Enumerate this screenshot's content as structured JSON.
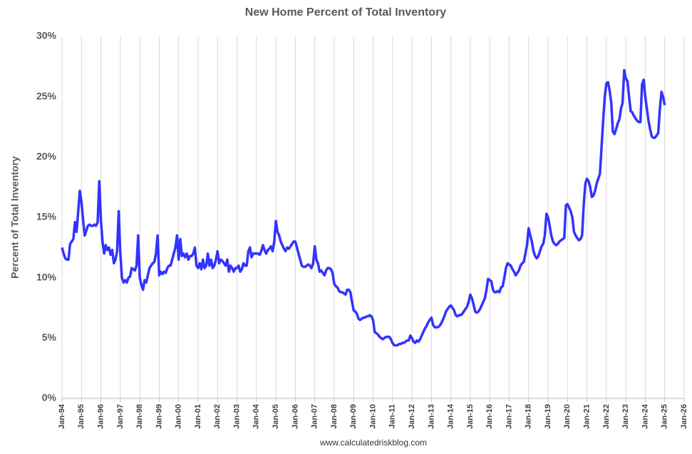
{
  "chart_data": {
    "type": "line",
    "title": "New Home Percent of Total Inventory",
    "y_label": "Percent of Total Inventory",
    "source": "www.calculatedriskblog.com",
    "x": [
      "1994-01",
      "1994-02",
      "1994-03",
      "1994-04",
      "1994-05",
      "1994-06",
      "1994-07",
      "1994-08",
      "1994-09",
      "1994-10",
      "1994-11",
      "1994-12",
      "1995-01",
      "1995-02",
      "1995-03",
      "1995-04",
      "1995-05",
      "1995-06",
      "1995-07",
      "1995-08",
      "1995-09",
      "1995-10",
      "1995-11",
      "1995-12",
      "1996-01",
      "1996-02",
      "1996-03",
      "1996-04",
      "1996-05",
      "1996-06",
      "1996-07",
      "1996-08",
      "1996-09",
      "1996-10",
      "1996-11",
      "1996-12",
      "1997-01",
      "1997-02",
      "1997-03",
      "1997-04",
      "1997-05",
      "1997-06",
      "1997-07",
      "1997-08",
      "1997-09",
      "1997-10",
      "1997-11",
      "1997-12",
      "1998-01",
      "1998-02",
      "1998-03",
      "1998-04",
      "1998-05",
      "1998-06",
      "1998-07",
      "1998-08",
      "1998-09",
      "1998-10",
      "1998-11",
      "1998-12",
      "1999-01",
      "1999-02",
      "1999-03",
      "1999-04",
      "1999-05",
      "1999-06",
      "1999-07",
      "1999-08",
      "1999-09",
      "1999-10",
      "1999-11",
      "1999-12",
      "2000-01",
      "2000-02",
      "2000-03",
      "2000-04",
      "2000-05",
      "2000-06",
      "2000-07",
      "2000-08",
      "2000-09",
      "2000-10",
      "2000-11",
      "2000-12",
      "2001-01",
      "2001-02",
      "2001-03",
      "2001-04",
      "2001-05",
      "2001-06",
      "2001-07",
      "2001-08",
      "2001-09",
      "2001-10",
      "2001-11",
      "2001-12",
      "2002-01",
      "2002-02",
      "2002-03",
      "2002-04",
      "2002-05",
      "2002-06",
      "2002-07",
      "2002-08",
      "2002-09",
      "2002-10",
      "2002-11",
      "2002-12",
      "2003-01",
      "2003-02",
      "2003-03",
      "2003-04",
      "2003-05",
      "2003-06",
      "2003-07",
      "2003-08",
      "2003-09",
      "2003-10",
      "2003-11",
      "2003-12",
      "2004-01",
      "2004-02",
      "2004-03",
      "2004-04",
      "2004-05",
      "2004-06",
      "2004-07",
      "2004-08",
      "2004-09",
      "2004-10",
      "2004-11",
      "2004-12",
      "2005-01",
      "2005-02",
      "2005-03",
      "2005-04",
      "2005-05",
      "2005-06",
      "2005-07",
      "2005-08",
      "2005-09",
      "2005-10",
      "2005-11",
      "2005-12",
      "2006-01",
      "2006-02",
      "2006-03",
      "2006-04",
      "2006-05",
      "2006-06",
      "2006-07",
      "2006-08",
      "2006-09",
      "2006-10",
      "2006-11",
      "2006-12",
      "2007-01",
      "2007-02",
      "2007-03",
      "2007-04",
      "2007-05",
      "2007-06",
      "2007-07",
      "2007-08",
      "2007-09",
      "2007-10",
      "2007-11",
      "2007-12",
      "2008-01",
      "2008-02",
      "2008-03",
      "2008-04",
      "2008-05",
      "2008-06",
      "2008-07",
      "2008-08",
      "2008-09",
      "2008-10",
      "2008-11",
      "2008-12",
      "2009-01",
      "2009-02",
      "2009-03",
      "2009-04",
      "2009-05",
      "2009-06",
      "2009-07",
      "2009-08",
      "2009-09",
      "2009-10",
      "2009-11",
      "2009-12",
      "2010-01",
      "2010-02",
      "2010-03",
      "2010-04",
      "2010-05",
      "2010-06",
      "2010-07",
      "2010-08",
      "2010-09",
      "2010-10",
      "2010-11",
      "2010-12",
      "2011-01",
      "2011-02",
      "2011-03",
      "2011-04",
      "2011-05",
      "2011-06",
      "2011-07",
      "2011-08",
      "2011-09",
      "2011-10",
      "2011-11",
      "2011-12",
      "2012-01",
      "2012-02",
      "2012-03",
      "2012-04",
      "2012-05",
      "2012-06",
      "2012-07",
      "2012-08",
      "2012-09",
      "2012-10",
      "2012-11",
      "2012-12",
      "2013-01",
      "2013-02",
      "2013-03",
      "2013-04",
      "2013-05",
      "2013-06",
      "2013-07",
      "2013-08",
      "2013-09",
      "2013-10",
      "2013-11",
      "2013-12",
      "2014-01",
      "2014-02",
      "2014-03",
      "2014-04",
      "2014-05",
      "2014-06",
      "2014-07",
      "2014-08",
      "2014-09",
      "2014-10",
      "2014-11",
      "2014-12",
      "2015-01",
      "2015-02",
      "2015-03",
      "2015-04",
      "2015-05",
      "2015-06",
      "2015-07",
      "2015-08",
      "2015-09",
      "2015-10",
      "2015-11",
      "2015-12",
      "2016-01",
      "2016-02",
      "2016-03",
      "2016-04",
      "2016-05",
      "2016-06",
      "2016-07",
      "2016-08",
      "2016-09",
      "2016-10",
      "2016-11",
      "2016-12",
      "2017-01",
      "2017-02",
      "2017-03",
      "2017-04",
      "2017-05",
      "2017-06",
      "2017-07",
      "2017-08",
      "2017-09",
      "2017-10",
      "2017-11",
      "2017-12",
      "2018-01",
      "2018-02",
      "2018-03",
      "2018-04",
      "2018-05",
      "2018-06",
      "2018-07",
      "2018-08",
      "2018-09",
      "2018-10",
      "2018-11",
      "2018-12",
      "2019-01",
      "2019-02",
      "2019-03",
      "2019-04",
      "2019-05",
      "2019-06",
      "2019-07",
      "2019-08",
      "2019-09",
      "2019-10",
      "2019-11",
      "2019-12",
      "2020-01",
      "2020-02",
      "2020-03",
      "2020-04",
      "2020-05",
      "2020-06",
      "2020-07",
      "2020-08",
      "2020-09",
      "2020-10",
      "2020-11",
      "2020-12",
      "2021-01",
      "2021-02",
      "2021-03",
      "2021-04",
      "2021-05",
      "2021-06",
      "2021-07",
      "2021-08",
      "2021-09",
      "2021-10",
      "2021-11",
      "2021-12",
      "2022-01",
      "2022-02",
      "2022-03",
      "2022-04",
      "2022-05",
      "2022-06",
      "2022-07",
      "2022-08",
      "2022-09",
      "2022-10",
      "2022-11",
      "2022-12",
      "2023-01",
      "2023-02",
      "2023-03",
      "2023-04",
      "2023-05",
      "2023-06",
      "2023-07",
      "2023-08",
      "2023-09",
      "2023-10",
      "2023-11",
      "2023-12",
      "2024-01",
      "2024-02",
      "2024-03",
      "2024-04",
      "2024-05",
      "2024-06",
      "2024-07",
      "2024-08",
      "2024-09",
      "2024-10",
      "2024-11",
      "2024-12",
      "2025-01"
    ],
    "series": [
      {
        "color": "#3333ff",
        "values": [
          12.5,
          12.0,
          11.6,
          11.5,
          11.5,
          12.8,
          13.0,
          13.2,
          14.6,
          13.8,
          15.5,
          17.2,
          16.3,
          14.8,
          13.5,
          13.9,
          14.3,
          14.4,
          14.3,
          14.3,
          14.4,
          14.3,
          14.6,
          18.0,
          14.8,
          13.0,
          12.0,
          12.7,
          12.3,
          12.5,
          11.9,
          12.3,
          11.2,
          11.5,
          12.2,
          15.5,
          12.0,
          10.0,
          9.6,
          9.8,
          9.6,
          10.0,
          10.1,
          10.8,
          10.7,
          10.6,
          11.0,
          13.5,
          10.0,
          9.4,
          9.0,
          9.8,
          9.6,
          10.2,
          10.8,
          11.0,
          11.2,
          11.3,
          12.0,
          13.5,
          10.2,
          10.5,
          10.3,
          10.5,
          10.4,
          10.8,
          11.0,
          11.0,
          11.5,
          12.0,
          12.5,
          13.5,
          11.5,
          13.2,
          11.8,
          12.0,
          11.7,
          12.0,
          11.5,
          11.8,
          11.8,
          12.0,
          12.5,
          11.0,
          10.8,
          11.2,
          10.7,
          11.5,
          10.8,
          11.0,
          12.0,
          11.0,
          11.5,
          10.8,
          11.0,
          11.5,
          12.2,
          11.2,
          11.5,
          11.4,
          11.2,
          11.0,
          11.5,
          10.5,
          11.0,
          10.8,
          10.5,
          10.8,
          10.8,
          11.0,
          10.5,
          10.7,
          11.2,
          11.0,
          11.0,
          12.2,
          12.5,
          11.7,
          12.0,
          12.0,
          12.0,
          12.0,
          11.9,
          12.2,
          12.7,
          12.3,
          12.0,
          12.3,
          12.4,
          12.6,
          12.2,
          13.0,
          14.7,
          13.8,
          13.5,
          13.0,
          12.7,
          12.4,
          12.2,
          12.5,
          12.4,
          12.6,
          12.8,
          13.0,
          13.0,
          12.5,
          12.0,
          11.5,
          11.0,
          10.9,
          10.9,
          11.0,
          11.1,
          11.0,
          10.8,
          11.2,
          12.6,
          11.5,
          11.2,
          10.5,
          10.6,
          10.4,
          10.2,
          10.6,
          10.8,
          10.8,
          10.7,
          10.4,
          9.5,
          9.3,
          9.2,
          8.9,
          8.8,
          8.8,
          8.7,
          8.6,
          9.0,
          9.0,
          8.8,
          8.0,
          7.3,
          7.2,
          7.0,
          6.6,
          6.5,
          6.6,
          6.7,
          6.7,
          6.8,
          6.8,
          6.9,
          6.8,
          6.5,
          5.5,
          5.4,
          5.3,
          5.1,
          5.0,
          4.9,
          5.0,
          5.1,
          5.1,
          5.1,
          4.9,
          4.6,
          4.4,
          4.4,
          4.4,
          4.5,
          4.5,
          4.6,
          4.6,
          4.7,
          4.8,
          4.8,
          5.2,
          5.0,
          4.7,
          4.6,
          4.8,
          4.7,
          4.9,
          5.2,
          5.5,
          5.8,
          6.0,
          6.3,
          6.5,
          6.7,
          6.1,
          5.9,
          5.9,
          5.9,
          6.0,
          6.2,
          6.5,
          6.8,
          7.2,
          7.4,
          7.6,
          7.7,
          7.5,
          7.3,
          6.9,
          6.8,
          6.9,
          6.9,
          7.0,
          7.2,
          7.4,
          7.6,
          8.0,
          8.6,
          8.3,
          7.8,
          7.2,
          7.1,
          7.2,
          7.4,
          7.7,
          8.0,
          8.3,
          9.0,
          9.9,
          9.8,
          9.7,
          9.0,
          8.8,
          8.8,
          8.9,
          8.8,
          9.2,
          9.3,
          10.0,
          10.8,
          11.2,
          11.1,
          11.0,
          10.7,
          10.5,
          10.2,
          10.4,
          10.6,
          11.0,
          11.2,
          11.3,
          12.0,
          12.7,
          14.1,
          13.5,
          13.0,
          12.2,
          11.8,
          11.6,
          11.8,
          12.2,
          12.6,
          12.8,
          13.5,
          15.3,
          15.0,
          14.3,
          13.5,
          13.0,
          12.8,
          12.7,
          12.8,
          13.0,
          13.1,
          13.2,
          13.3,
          16.0,
          16.1,
          15.8,
          15.5,
          15.0,
          13.8,
          13.5,
          13.3,
          13.1,
          13.2,
          13.5,
          16.0,
          17.8,
          18.2,
          18.0,
          17.5,
          16.7,
          16.8,
          17.2,
          17.8,
          18.2,
          18.6,
          20.8,
          23.0,
          25.0,
          26.1,
          26.2,
          25.5,
          24.5,
          22.1,
          21.9,
          22.3,
          22.8,
          23.1,
          24.0,
          24.5,
          27.2,
          26.5,
          26.3,
          25.0,
          23.8,
          23.7,
          23.4,
          23.2,
          23.0,
          22.9,
          22.9,
          26.0,
          26.4,
          25.0,
          24.0,
          23.0,
          22.3,
          21.7,
          21.6,
          21.6,
          21.8,
          22.0,
          24.0,
          25.4,
          25.0,
          24.3
        ]
      }
    ],
    "xlim": [
      "1994-01",
      "2026-01"
    ],
    "xticks": [
      {
        "value": "1994-01",
        "label": "Jan-94"
      },
      {
        "value": "1995-01",
        "label": "Jan-95"
      },
      {
        "value": "1996-01",
        "label": "Jan-96"
      },
      {
        "value": "1997-01",
        "label": "Jan-97"
      },
      {
        "value": "1998-01",
        "label": "Jan-98"
      },
      {
        "value": "1999-01",
        "label": "Jan-99"
      },
      {
        "value": "2000-01",
        "label": "Jan-00"
      },
      {
        "value": "2001-01",
        "label": "Jan-01"
      },
      {
        "value": "2002-01",
        "label": "Jan-02"
      },
      {
        "value": "2003-01",
        "label": "Jan-03"
      },
      {
        "value": "2004-01",
        "label": "Jan-04"
      },
      {
        "value": "2005-01",
        "label": "Jan-05"
      },
      {
        "value": "2006-01",
        "label": "Jan-06"
      },
      {
        "value": "2007-01",
        "label": "Jan-07"
      },
      {
        "value": "2008-01",
        "label": "Jan-08"
      },
      {
        "value": "2009-01",
        "label": "Jan-09"
      },
      {
        "value": "2010-01",
        "label": "Jan-10"
      },
      {
        "value": "2011-01",
        "label": "Jan-11"
      },
      {
        "value": "2012-01",
        "label": "Jan-12"
      },
      {
        "value": "2013-01",
        "label": "Jan-13"
      },
      {
        "value": "2014-01",
        "label": "Jan-14"
      },
      {
        "value": "2015-01",
        "label": "Jan-15"
      },
      {
        "value": "2016-01",
        "label": "Jan-16"
      },
      {
        "value": "2017-01",
        "label": "Jan-17"
      },
      {
        "value": "2018-01",
        "label": "Jan-18"
      },
      {
        "value": "2019-01",
        "label": "Jan-19"
      },
      {
        "value": "2020-01",
        "label": "Jan-20"
      },
      {
        "value": "2021-01",
        "label": "Jan-21"
      },
      {
        "value": "2022-01",
        "label": "Jan-22"
      },
      {
        "value": "2023-01",
        "label": "Jan-23"
      },
      {
        "value": "2024-01",
        "label": "Jan-24"
      },
      {
        "value": "2025-01",
        "label": "Jan-25"
      },
      {
        "value": "2026-01",
        "label": "Jan-26"
      }
    ],
    "ylim": [
      0,
      30
    ],
    "yticks": [
      {
        "value": 0,
        "label": "0%"
      },
      {
        "value": 5,
        "label": "5%"
      },
      {
        "value": 10,
        "label": "10%"
      },
      {
        "value": 15,
        "label": "15%"
      },
      {
        "value": 20,
        "label": "20%"
      },
      {
        "value": 25,
        "label": "25%"
      },
      {
        "value": 30,
        "label": "30%"
      }
    ],
    "xgrid": true
  }
}
